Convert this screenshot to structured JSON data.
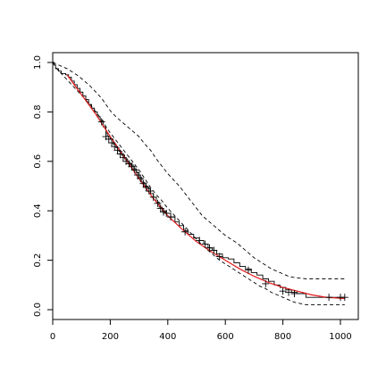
{
  "chart_data": {
    "type": "line",
    "title": "",
    "xlabel": "",
    "ylabel": "",
    "xlim": [
      0,
      1022
    ],
    "ylim": [
      0,
      1.0
    ],
    "x_ticks": [
      0,
      200,
      400,
      600,
      800,
      1000
    ],
    "y_ticks": [
      0.0,
      0.2,
      0.4,
      0.6,
      0.8,
      1.0
    ],
    "x_tick_labels": [
      "0",
      "200",
      "400",
      "600",
      "800",
      "1000"
    ],
    "y_tick_labels": [
      "0.0",
      "0.2",
      "0.4",
      "0.6",
      "0.8",
      "1.0"
    ],
    "grid": false,
    "legend": "none",
    "series": [
      {
        "style": "step",
        "color": "#000000",
        "points": [
          [
            0,
            1.0
          ],
          [
            5,
            0.99
          ],
          [
            10,
            0.975
          ],
          [
            20,
            0.965
          ],
          [
            30,
            0.955
          ],
          [
            45,
            0.95
          ],
          [
            55,
            0.94
          ],
          [
            65,
            0.925
          ],
          [
            75,
            0.91
          ],
          [
            85,
            0.895
          ],
          [
            95,
            0.88
          ],
          [
            105,
            0.865
          ],
          [
            115,
            0.85
          ],
          [
            125,
            0.83
          ],
          [
            135,
            0.815
          ],
          [
            145,
            0.8
          ],
          [
            155,
            0.78
          ],
          [
            165,
            0.765
          ],
          [
            175,
            0.74
          ],
          [
            185,
            0.715
          ],
          [
            190,
            0.7
          ],
          [
            200,
            0.69
          ],
          [
            210,
            0.67
          ],
          [
            220,
            0.655
          ],
          [
            230,
            0.64
          ],
          [
            240,
            0.625
          ],
          [
            250,
            0.61
          ],
          [
            260,
            0.595
          ],
          [
            270,
            0.585
          ],
          [
            280,
            0.57
          ],
          [
            290,
            0.555
          ],
          [
            300,
            0.535
          ],
          [
            310,
            0.515
          ],
          [
            320,
            0.5
          ],
          [
            330,
            0.49
          ],
          [
            340,
            0.47
          ],
          [
            350,
            0.455
          ],
          [
            360,
            0.435
          ],
          [
            370,
            0.415
          ],
          [
            380,
            0.4
          ],
          [
            395,
            0.39
          ],
          [
            410,
            0.375
          ],
          [
            425,
            0.355
          ],
          [
            440,
            0.34
          ],
          [
            455,
            0.32
          ],
          [
            470,
            0.305
          ],
          [
            490,
            0.29
          ],
          [
            510,
            0.28
          ],
          [
            525,
            0.265
          ],
          [
            540,
            0.25
          ],
          [
            555,
            0.24
          ],
          [
            570,
            0.225
          ],
          [
            590,
            0.21
          ],
          [
            610,
            0.205
          ],
          [
            630,
            0.19
          ],
          [
            650,
            0.175
          ],
          [
            670,
            0.165
          ],
          [
            690,
            0.15
          ],
          [
            710,
            0.14
          ],
          [
            730,
            0.125
          ],
          [
            750,
            0.115
          ],
          [
            770,
            0.1
          ],
          [
            790,
            0.09
          ],
          [
            810,
            0.08
          ],
          [
            830,
            0.07
          ],
          [
            850,
            0.065
          ],
          [
            880,
            0.05
          ],
          [
            960,
            0.05
          ],
          [
            1015,
            0.05
          ]
        ]
      },
      {
        "style": "dashed",
        "color": "#000000",
        "points": [
          [
            0,
            1.0
          ],
          [
            10,
            0.995
          ],
          [
            30,
            0.985
          ],
          [
            50,
            0.975
          ],
          [
            70,
            0.96
          ],
          [
            90,
            0.945
          ],
          [
            110,
            0.925
          ],
          [
            130,
            0.905
          ],
          [
            150,
            0.88
          ],
          [
            170,
            0.855
          ],
          [
            185,
            0.83
          ],
          [
            200,
            0.805
          ],
          [
            220,
            0.78
          ],
          [
            240,
            0.76
          ],
          [
            260,
            0.74
          ],
          [
            280,
            0.72
          ],
          [
            300,
            0.7
          ],
          [
            320,
            0.67
          ],
          [
            340,
            0.645
          ],
          [
            360,
            0.61
          ],
          [
            380,
            0.58
          ],
          [
            400,
            0.55
          ],
          [
            420,
            0.525
          ],
          [
            440,
            0.5
          ],
          [
            460,
            0.47
          ],
          [
            480,
            0.44
          ],
          [
            500,
            0.41
          ],
          [
            520,
            0.38
          ],
          [
            540,
            0.36
          ],
          [
            560,
            0.34
          ],
          [
            580,
            0.32
          ],
          [
            600,
            0.3
          ],
          [
            620,
            0.285
          ],
          [
            640,
            0.27
          ],
          [
            660,
            0.25
          ],
          [
            680,
            0.23
          ],
          [
            700,
            0.21
          ],
          [
            720,
            0.195
          ],
          [
            740,
            0.18
          ],
          [
            760,
            0.165
          ],
          [
            780,
            0.155
          ],
          [
            800,
            0.145
          ],
          [
            820,
            0.135
          ],
          [
            840,
            0.13
          ],
          [
            880,
            0.125
          ],
          [
            960,
            0.125
          ],
          [
            1015,
            0.125
          ]
        ]
      },
      {
        "style": "dashed",
        "color": "#000000",
        "points": [
          [
            0,
            1.0
          ],
          [
            10,
            0.98
          ],
          [
            30,
            0.955
          ],
          [
            50,
            0.93
          ],
          [
            70,
            0.905
          ],
          [
            90,
            0.88
          ],
          [
            110,
            0.855
          ],
          [
            130,
            0.83
          ],
          [
            150,
            0.8
          ],
          [
            170,
            0.77
          ],
          [
            185,
            0.74
          ],
          [
            200,
            0.715
          ],
          [
            220,
            0.685
          ],
          [
            240,
            0.655
          ],
          [
            260,
            0.625
          ],
          [
            280,
            0.595
          ],
          [
            300,
            0.565
          ],
          [
            320,
            0.53
          ],
          [
            340,
            0.495
          ],
          [
            360,
            0.465
          ],
          [
            380,
            0.44
          ],
          [
            400,
            0.41
          ],
          [
            420,
            0.385
          ],
          [
            440,
            0.36
          ],
          [
            460,
            0.335
          ],
          [
            480,
            0.31
          ],
          [
            500,
            0.285
          ],
          [
            520,
            0.26
          ],
          [
            540,
            0.24
          ],
          [
            560,
            0.22
          ],
          [
            580,
            0.2
          ],
          [
            600,
            0.185
          ],
          [
            620,
            0.17
          ],
          [
            640,
            0.155
          ],
          [
            660,
            0.14
          ],
          [
            680,
            0.125
          ],
          [
            700,
            0.11
          ],
          [
            720,
            0.095
          ],
          [
            740,
            0.085
          ],
          [
            760,
            0.07
          ],
          [
            780,
            0.06
          ],
          [
            800,
            0.05
          ],
          [
            820,
            0.04
          ],
          [
            840,
            0.03
          ],
          [
            880,
            0.02
          ],
          [
            960,
            0.02
          ],
          [
            1015,
            0.02
          ]
        ]
      },
      {
        "style": "solid",
        "color": "#e31a1c",
        "points": [
          [
            50,
            0.95
          ],
          [
            100,
            0.87
          ],
          [
            150,
            0.79
          ],
          [
            200,
            0.7
          ],
          [
            250,
            0.615
          ],
          [
            300,
            0.53
          ],
          [
            350,
            0.45
          ],
          [
            400,
            0.38
          ],
          [
            450,
            0.325
          ],
          [
            500,
            0.275
          ],
          [
            550,
            0.235
          ],
          [
            600,
            0.2
          ],
          [
            650,
            0.165
          ],
          [
            700,
            0.135
          ],
          [
            750,
            0.11
          ],
          [
            800,
            0.09
          ],
          [
            850,
            0.075
          ],
          [
            900,
            0.06
          ],
          [
            950,
            0.05
          ],
          [
            1015,
            0.045
          ]
        ]
      }
    ],
    "censor_marks": [
      [
        170,
        0.76
      ],
      [
        185,
        0.7
      ],
      [
        195,
        0.69
      ],
      [
        205,
        0.675
      ],
      [
        215,
        0.66
      ],
      [
        225,
        0.645
      ],
      [
        235,
        0.63
      ],
      [
        245,
        0.615
      ],
      [
        255,
        0.6
      ],
      [
        265,
        0.59
      ],
      [
        275,
        0.58
      ],
      [
        285,
        0.565
      ],
      [
        295,
        0.545
      ],
      [
        305,
        0.53
      ],
      [
        315,
        0.51
      ],
      [
        325,
        0.495
      ],
      [
        335,
        0.48
      ],
      [
        350,
        0.455
      ],
      [
        365,
        0.43
      ],
      [
        375,
        0.41
      ],
      [
        385,
        0.395
      ],
      [
        395,
        0.39
      ],
      [
        410,
        0.375
      ],
      [
        460,
        0.315
      ],
      [
        510,
        0.28
      ],
      [
        530,
        0.265
      ],
      [
        545,
        0.25
      ],
      [
        560,
        0.24
      ],
      [
        580,
        0.215
      ],
      [
        680,
        0.16
      ],
      [
        740,
        0.105
      ],
      [
        800,
        0.075
      ],
      [
        820,
        0.07
      ],
      [
        840,
        0.065
      ],
      [
        960,
        0.05
      ],
      [
        1000,
        0.05
      ],
      [
        1015,
        0.05
      ]
    ]
  }
}
